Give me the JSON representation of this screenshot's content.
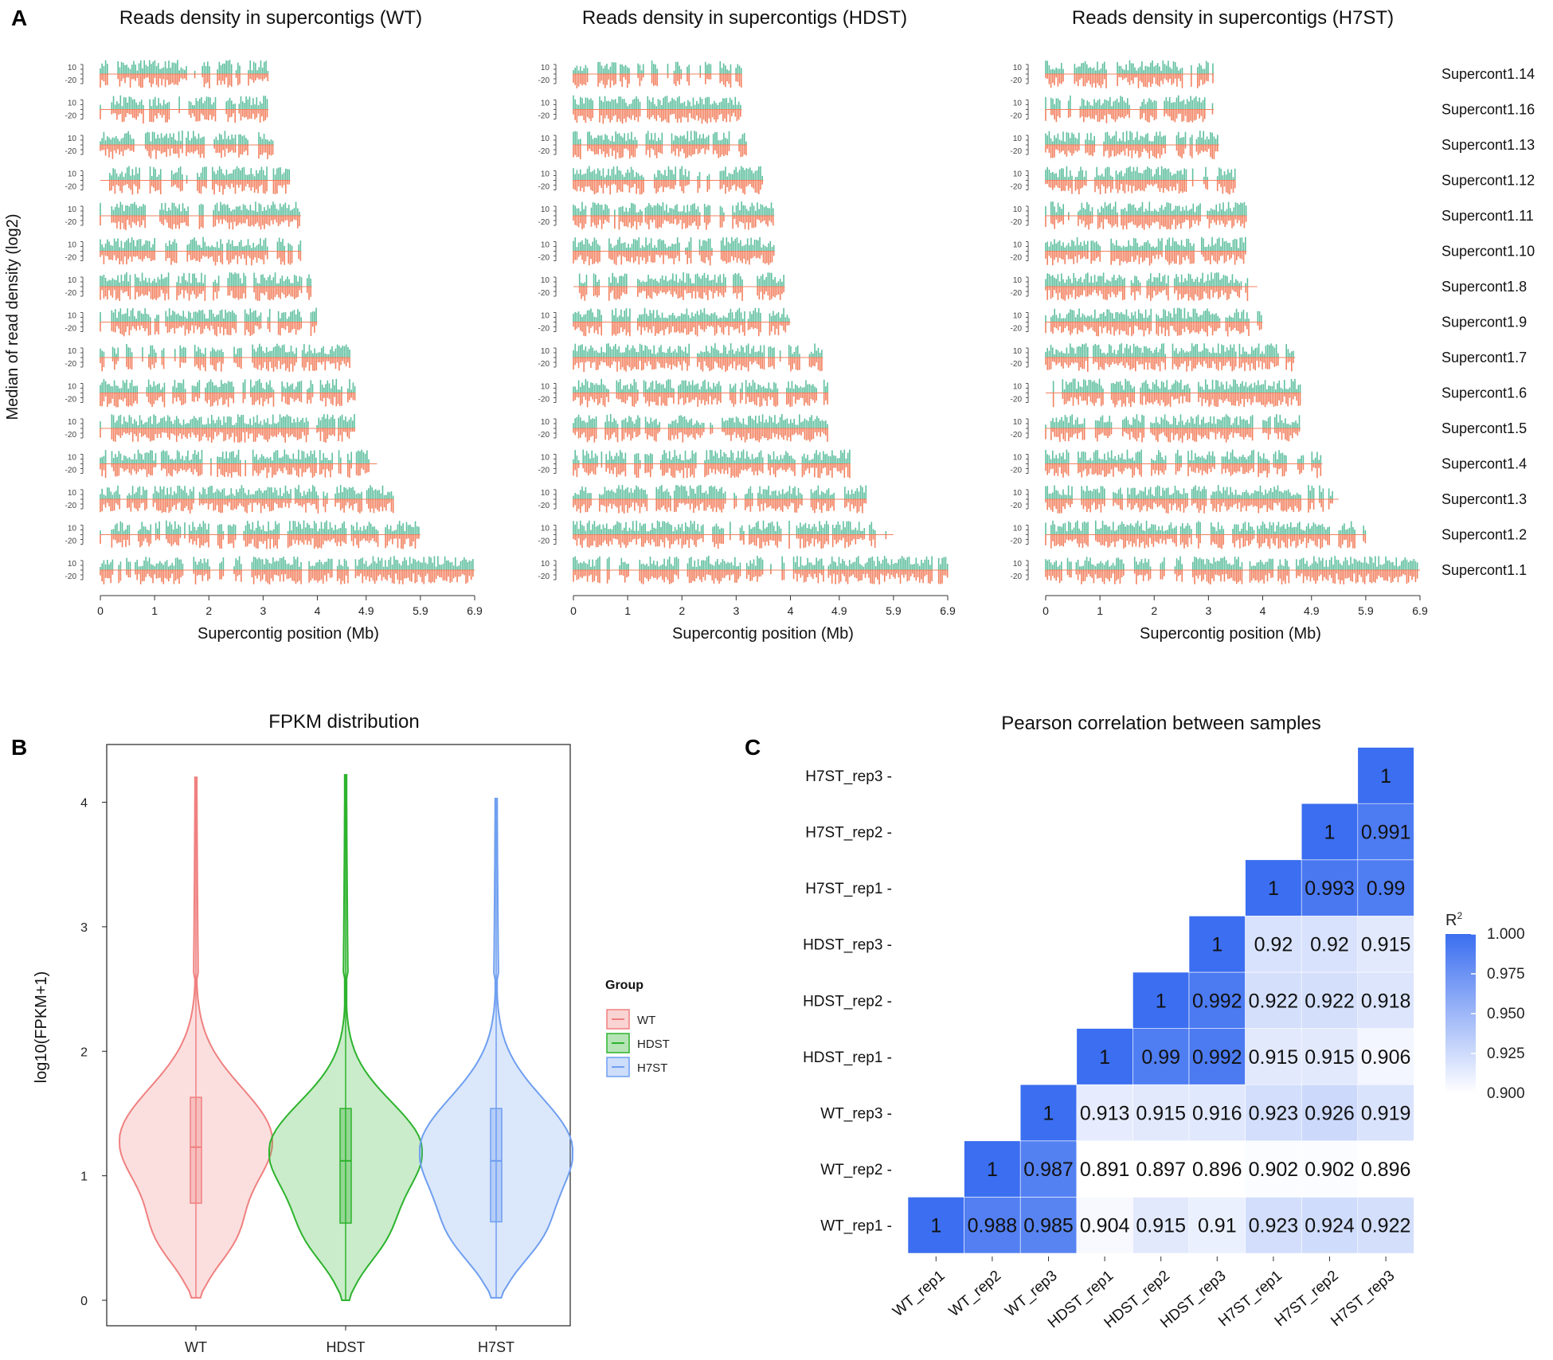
{
  "panels": {
    "A": "A",
    "B": "B",
    "C": "C"
  },
  "chart_data": [
    {
      "type": "track",
      "panel": "A",
      "titles": [
        "Reads density in supercontigs (WT)",
        "Reads density in supercontigs (HDST)",
        "Reads density in supercontigs (H7ST)"
      ],
      "ylabel": "Median of read density (log2)",
      "xlabel": "Supercontig position (Mb)",
      "xticks": [
        "0",
        "1",
        "2",
        "3",
        "4",
        "4.9",
        "5.9",
        "6.9"
      ],
      "xlim": [
        0,
        6.9
      ],
      "track_ticks": [
        "10",
        "-20"
      ],
      "supercontigs": [
        "Supercont1.14",
        "Supercont1.16",
        "Supercont1.13",
        "Supercont1.12",
        "Supercont1.11",
        "Supercont1.10",
        "Supercont1.8",
        "Supercont1.9",
        "Supercont1.7",
        "Supercont1.6",
        "Supercont1.5",
        "Supercont1.4",
        "Supercont1.3",
        "Supercont1.2",
        "Supercont1.1"
      ],
      "lengths_mb": [
        3.1,
        3.1,
        3.2,
        3.5,
        3.7,
        3.7,
        3.9,
        4.0,
        4.6,
        4.7,
        4.7,
        5.1,
        5.4,
        5.9,
        6.9
      ],
      "colors": {
        "upper": "#5fbf9f",
        "lower": "#f2805f"
      }
    },
    {
      "type": "violin",
      "panel": "B",
      "title": "FPKM distribution",
      "ylabel": "log10(FPKM+1)",
      "xlabel": "",
      "categories": [
        "WT",
        "HDST",
        "H7ST"
      ],
      "yticks": [
        "0",
        "1",
        "2",
        "3",
        "4"
      ],
      "ylim": [
        0,
        4.4
      ],
      "box": [
        {
          "group": "WT",
          "min": 0.02,
          "q1": 0.78,
          "median": 1.23,
          "q3": 1.63,
          "max": 4.2
        },
        {
          "group": "HDST",
          "min": 0.0,
          "q1": 0.62,
          "median": 1.12,
          "q3": 1.54,
          "max": 4.22
        },
        {
          "group": "H7ST",
          "min": 0.02,
          "q1": 0.63,
          "median": 1.12,
          "q3": 1.54,
          "max": 4.03
        }
      ],
      "legend": {
        "title": "Group",
        "items": [
          "WT",
          "HDST",
          "H7ST"
        ]
      },
      "colors": {
        "WT": "#f08080",
        "HDST": "#2db32d",
        "H7ST": "#6f9ff0"
      }
    },
    {
      "type": "heatmap",
      "panel": "C",
      "title": "Pearson correlation between samples",
      "samples": [
        "WT_rep1",
        "WT_rep2",
        "WT_rep3",
        "HDST_rep1",
        "HDST_rep2",
        "HDST_rep3",
        "H7ST_rep1",
        "H7ST_rep2",
        "H7ST_rep3"
      ],
      "rows": [
        [
          "1",
          "0.988",
          "0.985",
          "0.904",
          "0.915",
          "0.91",
          "0.923",
          "0.924",
          "0.922"
        ],
        [
          "1",
          "0.987",
          "0.891",
          "0.897",
          "0.896",
          "0.902",
          "0.902",
          "0.896"
        ],
        [
          "1",
          "0.913",
          "0.915",
          "0.916",
          "0.923",
          "0.926",
          "0.919"
        ],
        [
          "1",
          "0.99",
          "0.992",
          "0.915",
          "0.915",
          "0.906"
        ],
        [
          "1",
          "0.992",
          "0.922",
          "0.922",
          "0.918"
        ],
        [
          "1",
          "0.92",
          "0.92",
          "0.915"
        ],
        [
          "1",
          "0.993",
          "0.99"
        ],
        [
          "1",
          "0.991"
        ],
        [
          "1"
        ]
      ],
      "legend": {
        "title": "R",
        "title_sup": "2",
        "ticks": [
          "1.000",
          "0.975",
          "0.950",
          "0.925",
          "0.900"
        ],
        "range": [
          0.9,
          1.0
        ]
      },
      "colors": {
        "high": "#3b6ef0",
        "low": "#ffffff"
      }
    }
  ]
}
